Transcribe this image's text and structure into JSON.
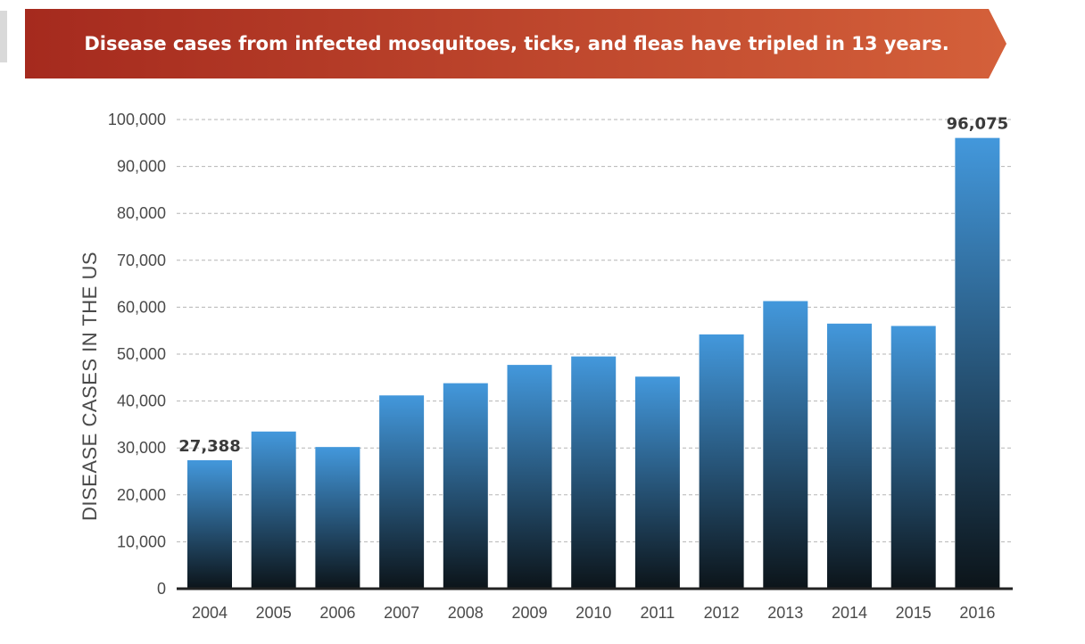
{
  "chart_data": {
    "type": "bar",
    "title": "Disease cases from infected mosquitoes, ticks, and fleas have tripled in 13 years.",
    "ylabel": "DISEASE CASES IN THE US",
    "xlabel": "",
    "categories": [
      "2004",
      "2005",
      "2006",
      "2007",
      "2008",
      "2009",
      "2010",
      "2011",
      "2012",
      "2013",
      "2014",
      "2015",
      "2016"
    ],
    "values": [
      27388,
      33500,
      30200,
      41200,
      43800,
      47700,
      49500,
      45200,
      54200,
      61300,
      56500,
      56000,
      96075
    ],
    "ylim": [
      0,
      100000
    ],
    "yticks": [
      0,
      10000,
      20000,
      30000,
      40000,
      50000,
      60000,
      70000,
      80000,
      90000,
      100000
    ],
    "ytick_labels": [
      "0",
      "10,000",
      "20,000",
      "30,000",
      "40,000",
      "50,000",
      "60,000",
      "70,000",
      "80,000",
      "90,000",
      "100,000"
    ],
    "annotations": [
      {
        "category": "2004",
        "text": "27,388"
      },
      {
        "category": "2016",
        "text": "96,075"
      }
    ],
    "grid": true,
    "colors": {
      "bar_top": "#4398dc",
      "bar_bottom": "#0c1419",
      "banner_left": "#a52a1e",
      "banner_right": "#d4603a",
      "grid": "#b5b5b5",
      "axis": "#222222"
    }
  }
}
